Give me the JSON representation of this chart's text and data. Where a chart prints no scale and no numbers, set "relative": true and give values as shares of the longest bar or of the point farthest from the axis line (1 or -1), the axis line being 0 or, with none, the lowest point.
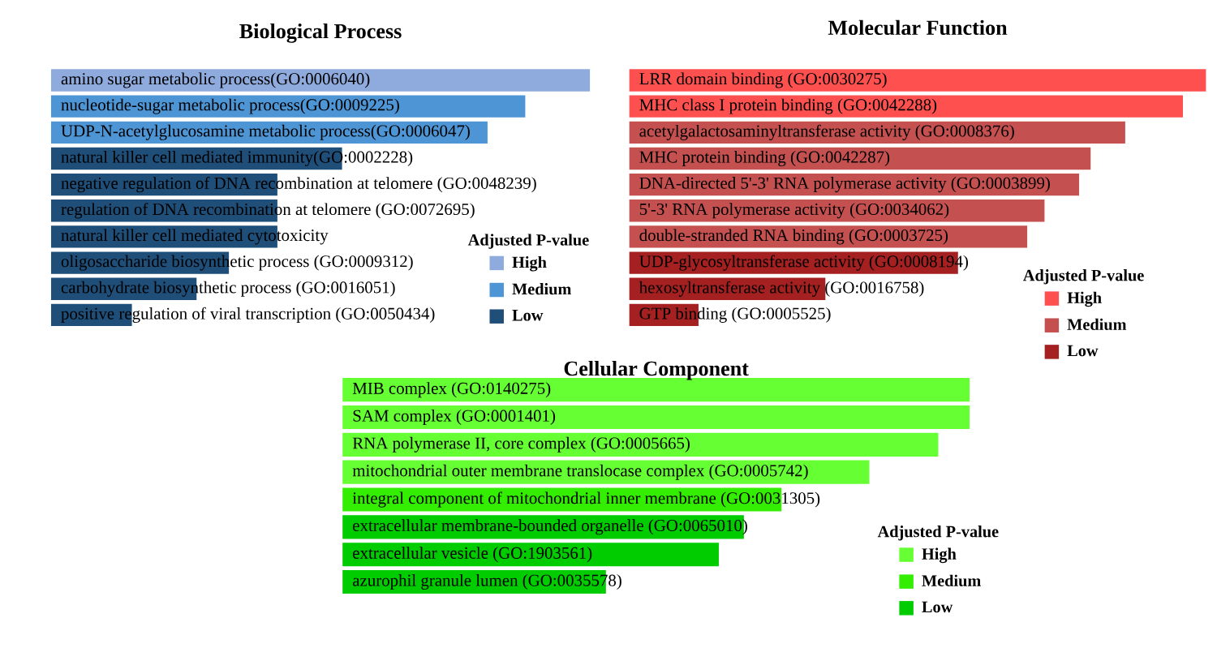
{
  "chart_data": [
    {
      "type": "bar",
      "orientation": "horizontal",
      "relative": true,
      "stacked": true,
      "title": "Biological Process",
      "legend_title": "Adjusted P-value",
      "legend": "bottom right",
      "categories": [
        "amino sugar metabolic process(GO:0006040)",
        "nucleotide-sugar metabolic process(GO:0009225)",
        "UDP-N-acetylglucosamine metabolic process(GO:0006047)",
        "natural killer cell mediated immunity(GO:0002228)",
        "negative regulation of DNA recombination at telomere (GO:0048239)",
        "regulation of DNA recombination at telomere (GO:0072695)",
        "natural killer cell mediated cytotoxicity",
        "oligosaccharide biosynthetic process (GO:0009312)",
        "carbohydrate biosynthetic process (GO:0016051)",
        "positive regulation of viral transcription (GO:0050434)"
      ],
      "series": [
        {
          "name": "High",
          "color": "#8faadc",
          "values": [
            1,
            null,
            null,
            null,
            null,
            null,
            null,
            null,
            null,
            null
          ]
        },
        {
          "name": "Medium",
          "color": "#4e95d6",
          "values": [
            null,
            0.88,
            0.81,
            null,
            null,
            null,
            null,
            null,
            null,
            null
          ]
        },
        {
          "name": "Low",
          "color": "#1f4e79",
          "values": [
            null,
            null,
            null,
            0.54,
            0.42,
            0.42,
            0.42,
            0.33,
            0.27,
            0.15
          ]
        }
      ]
    },
    {
      "type": "bar",
      "orientation": "horizontal",
      "relative": true,
      "stacked": true,
      "title": "Molecular Function",
      "legend_title": "Adjusted P-value",
      "legend": "bottom right",
      "categories": [
        "LRR domain binding (GO:0030275)",
        "MHC class I protein binding (GO:0042288)",
        "acetylgalactosaminyltransferase activity (GO:0008376)",
        "MHC protein binding (GO:0042287)",
        "DNA-directed 5'-3' RNA polymerase activity (GO:0003899)",
        "5'-3' RNA polymerase activity (GO:0034062)",
        "double-stranded RNA binding (GO:0003725)",
        "UDP-glycosyltransferase activity (GO:0008194)",
        "hexosyltransferase activity (GO:0016758)",
        "GTP binding (GO:0005525)"
      ],
      "series": [
        {
          "name": "High",
          "color": "#ff5050",
          "values": [
            1,
            0.96,
            null,
            null,
            null,
            null,
            null,
            null,
            null,
            null
          ]
        },
        {
          "name": "Medium",
          "color": "#c45050",
          "values": [
            null,
            null,
            0.86,
            0.8,
            0.78,
            0.72,
            0.69,
            null,
            null,
            null
          ]
        },
        {
          "name": "Low",
          "color": "#a52020",
          "values": [
            null,
            null,
            null,
            null,
            null,
            null,
            null,
            0.57,
            0.34,
            0.12
          ]
        }
      ]
    },
    {
      "type": "bar",
      "orientation": "horizontal",
      "relative": true,
      "stacked": true,
      "title": "Cellular Component",
      "legend_title": "Adjusted P-value",
      "legend": "bottom right",
      "categories": [
        "MIB complex (GO:0140275)",
        "SAM complex (GO:0001401)",
        "RNA polymerase II, core complex (GO:0005665)",
        "mitochondrial outer membrane translocase complex (GO:0005742)",
        "integral component of mitochondrial inner membrane (GO:0031305)",
        "extracellular membrane-bounded organelle (GO:0065010)",
        "extracellular vesicle (GO:1903561)",
        "azurophil granule lumen (GO:0035578)"
      ],
      "series": [
        {
          "name": "High",
          "color": "#66ff33",
          "values": [
            1,
            1,
            0.95,
            0.84,
            null,
            null,
            null,
            null
          ]
        },
        {
          "name": "Medium",
          "color": "#33ee00",
          "values": [
            null,
            null,
            null,
            null,
            0.7,
            null,
            null,
            null
          ]
        },
        {
          "name": "Low",
          "color": "#00cc00",
          "values": [
            null,
            null,
            null,
            null,
            null,
            0.64,
            0.6,
            0.42
          ]
        }
      ]
    }
  ]
}
